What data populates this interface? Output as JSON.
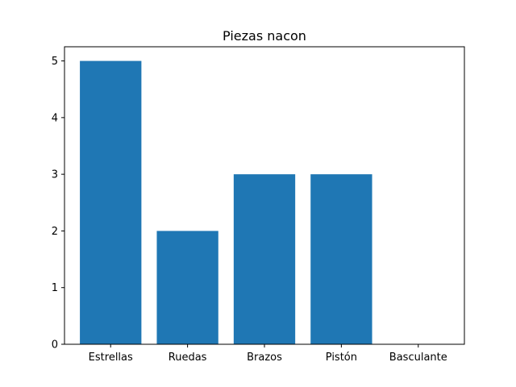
{
  "chart_data": {
    "type": "bar",
    "title": "Piezas nacon",
    "xlabel": "",
    "ylabel": "",
    "categories": [
      "Estrellas",
      "Ruedas",
      "Brazos",
      "Pistón",
      "Basculante"
    ],
    "values": [
      5,
      2,
      3,
      3,
      0
    ],
    "ylim": [
      0,
      5.25
    ],
    "yticks": [
      0,
      1,
      2,
      3,
      4,
      5
    ],
    "grid": false,
    "bar_color": "#1f77b4"
  }
}
